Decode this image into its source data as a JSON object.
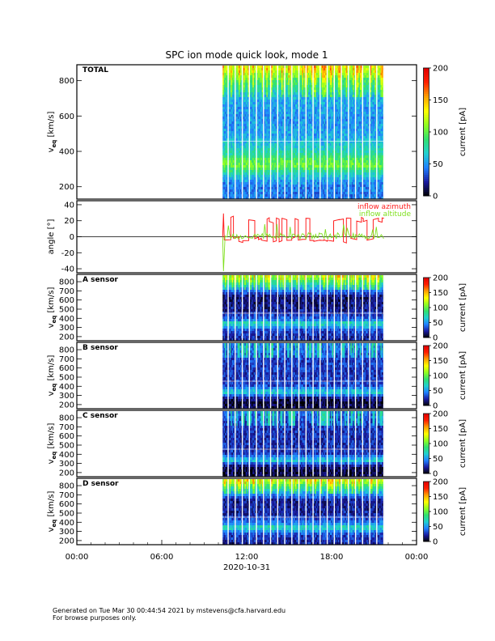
{
  "footer": {
    "line1": "Generated on Tue Mar 30 00:44:54 2021 by mstevens@cfa.harvard.edu",
    "line2": "For browse purposes only."
  },
  "colors": {
    "azimuth": "#ff2020",
    "altitude": "#80e020",
    "colorbar_stops": [
      "#000000",
      "#1a1aa0",
      "#2080ff",
      "#20d0d0",
      "#30e070",
      "#90ff20",
      "#ffff00",
      "#ffa000",
      "#ff2000",
      "#e00000"
    ]
  },
  "chart_data": {
    "title": "SPC ion mode quick look, mode 1",
    "time_axis": {
      "tick_labels": [
        "00:00",
        "06:00",
        "12:00",
        "18:00",
        "00:00"
      ],
      "tick_hours": [
        0,
        6,
        12,
        18,
        24
      ],
      "date_label": "2020-10-31",
      "range_hours": [
        0,
        24
      ],
      "data_start_hour": 10.3,
      "data_end_hour": 21.7
    },
    "panels": [
      {
        "type": "heatmap",
        "label": "TOTAL",
        "ylabel_main": "v",
        "ylabel_sub": "eq",
        "ylabel_rest": " [km/s]",
        "ylim": [
          130,
          890
        ],
        "yticks": [
          200,
          400,
          600,
          800
        ],
        "colorbar": {
          "label": "current [pA]",
          "range": [
            0,
            200
          ],
          "ticks": [
            0,
            50,
            100,
            150,
            200
          ]
        },
        "bands": [
          {
            "v": 200,
            "level": 0.22
          },
          {
            "v": 235,
            "level": 0.25
          },
          {
            "v": 265,
            "level": 0.32
          },
          {
            "v": 300,
            "level": 0.42
          },
          {
            "v": 325,
            "level": 0.52
          },
          {
            "v": 360,
            "level": 0.48
          },
          {
            "v": 390,
            "level": 0.4
          },
          {
            "v": 430,
            "level": 0.34
          },
          {
            "v": 500,
            "level": 0.27
          },
          {
            "v": 600,
            "level": 0.25
          },
          {
            "v": 700,
            "level": 0.28
          },
          {
            "v": 800,
            "level": 0.45
          },
          {
            "v": 870,
            "level": 0.62
          }
        ]
      },
      {
        "type": "line",
        "label": "",
        "ylabel_main": "angle [°]",
        "ylabel_sub": "",
        "ylabel_rest": "",
        "ylim": [
          -45,
          45
        ],
        "yticks": [
          -40,
          -20,
          0,
          20,
          40
        ],
        "zero_line": true,
        "series": [
          {
            "name": "inflow azimuth",
            "color": "#ff2020",
            "baseline": -4,
            "high": 22,
            "initial_peak": 29
          },
          {
            "name": "inflow altitude",
            "color": "#80e020",
            "baseline": 1,
            "initial_min": -43
          }
        ]
      },
      {
        "type": "heatmap",
        "label": "A sensor",
        "ylabel_main": "v",
        "ylabel_sub": "eq",
        "ylabel_rest": " [km/s]",
        "ylim": [
          155,
          880
        ],
        "yticks": [
          200,
          300,
          400,
          500,
          600,
          700,
          800
        ],
        "colorbar": {
          "label": "current [pA]",
          "range": [
            0,
            200
          ],
          "ticks": [
            0,
            50,
            100,
            150,
            200
          ]
        },
        "bands": [
          {
            "v": 200,
            "level": 0.12
          },
          {
            "v": 280,
            "level": 0.16
          },
          {
            "v": 330,
            "level": 0.3
          },
          {
            "v": 360,
            "level": 0.38
          },
          {
            "v": 400,
            "level": 0.2
          },
          {
            "v": 500,
            "level": 0.1
          },
          {
            "v": 650,
            "level": 0.08
          },
          {
            "v": 800,
            "level": 0.4
          },
          {
            "v": 860,
            "level": 0.55
          }
        ]
      },
      {
        "type": "heatmap",
        "label": "B sensor",
        "ylabel_main": "v",
        "ylabel_sub": "eq",
        "ylabel_rest": " [km/s]",
        "ylim": [
          155,
          880
        ],
        "yticks": [
          200,
          300,
          400,
          500,
          600,
          700,
          800
        ],
        "colorbar": {
          "label": "current [pA]",
          "range": [
            0,
            200
          ],
          "ticks": [
            0,
            50,
            100,
            150,
            200
          ]
        },
        "bands": [
          {
            "v": 200,
            "level": 0.05
          },
          {
            "v": 240,
            "level": 0.03
          },
          {
            "v": 290,
            "level": 0.1
          },
          {
            "v": 340,
            "level": 0.32
          },
          {
            "v": 370,
            "level": 0.3
          },
          {
            "v": 420,
            "level": 0.16
          },
          {
            "v": 550,
            "level": 0.14
          },
          {
            "v": 700,
            "level": 0.15
          },
          {
            "v": 860,
            "level": 0.22
          }
        ]
      },
      {
        "type": "heatmap",
        "label": "C sensor",
        "ylabel_main": "v",
        "ylabel_sub": "eq",
        "ylabel_rest": " [km/s]",
        "ylim": [
          155,
          880
        ],
        "yticks": [
          200,
          300,
          400,
          500,
          600,
          700,
          800
        ],
        "colorbar": {
          "label": "current [pA]",
          "range": [
            0,
            200
          ],
          "ticks": [
            0,
            50,
            100,
            150,
            200
          ]
        },
        "bands": [
          {
            "v": 200,
            "level": 0.05
          },
          {
            "v": 250,
            "level": 0.04
          },
          {
            "v": 300,
            "level": 0.12
          },
          {
            "v": 340,
            "level": 0.32
          },
          {
            "v": 370,
            "level": 0.28
          },
          {
            "v": 420,
            "level": 0.14
          },
          {
            "v": 550,
            "level": 0.13
          },
          {
            "v": 700,
            "level": 0.14
          },
          {
            "v": 860,
            "level": 0.2
          }
        ]
      },
      {
        "type": "heatmap",
        "label": "D sensor",
        "ylabel_main": "v",
        "ylabel_sub": "eq",
        "ylabel_rest": " [km/s]",
        "ylim": [
          155,
          880
        ],
        "yticks": [
          200,
          300,
          400,
          500,
          600,
          700,
          800
        ],
        "colorbar": {
          "label": "current [pA]",
          "range": [
            0,
            200
          ],
          "ticks": [
            0,
            50,
            100,
            150,
            200
          ]
        },
        "bands": [
          {
            "v": 200,
            "level": 0.12
          },
          {
            "v": 280,
            "level": 0.16
          },
          {
            "v": 330,
            "level": 0.3
          },
          {
            "v": 360,
            "level": 0.38
          },
          {
            "v": 400,
            "level": 0.22
          },
          {
            "v": 500,
            "level": 0.12
          },
          {
            "v": 650,
            "level": 0.1
          },
          {
            "v": 800,
            "level": 0.42
          },
          {
            "v": 860,
            "level": 0.58
          }
        ]
      }
    ]
  }
}
